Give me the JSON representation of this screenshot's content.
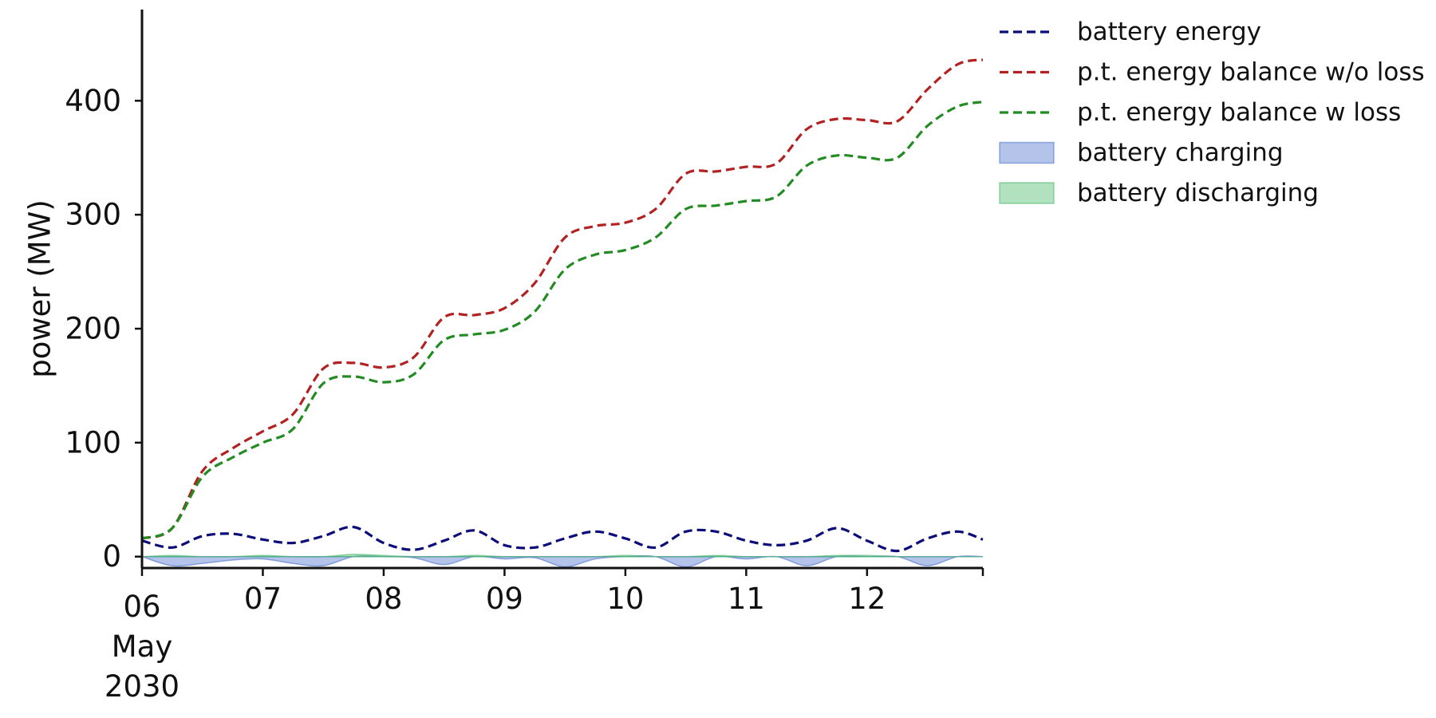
{
  "chart_data": {
    "type": "line",
    "ylabel": "power (MW)",
    "xlabel": "",
    "ylim": [
      -10,
      480
    ],
    "xlim": [
      "2030-05-06 00:00",
      "2030-05-12 23:00"
    ],
    "yticks": [
      0,
      100,
      200,
      300,
      400
    ],
    "xticks": [
      {
        "value": "2030-05-06",
        "label": [
          "06",
          "May",
          "2030"
        ]
      },
      {
        "value": "2030-05-07",
        "label": [
          "07"
        ]
      },
      {
        "value": "2030-05-08",
        "label": [
          "08"
        ]
      },
      {
        "value": "2030-05-09",
        "label": [
          "09"
        ]
      },
      {
        "value": "2030-05-10",
        "label": [
          "10"
        ]
      },
      {
        "value": "2030-05-11",
        "label": [
          "11"
        ]
      },
      {
        "value": "2030-05-12",
        "label": [
          "12"
        ]
      }
    ],
    "legend_position": "top-right outside",
    "grid": false,
    "x": [
      "2030-05-06 00:00",
      "2030-05-06 06:00",
      "2030-05-06 12:00",
      "2030-05-06 18:00",
      "2030-05-07 00:00",
      "2030-05-07 06:00",
      "2030-05-07 12:00",
      "2030-05-07 18:00",
      "2030-05-08 00:00",
      "2030-05-08 06:00",
      "2030-05-08 12:00",
      "2030-05-08 18:00",
      "2030-05-09 00:00",
      "2030-05-09 06:00",
      "2030-05-09 12:00",
      "2030-05-09 18:00",
      "2030-05-10 00:00",
      "2030-05-10 06:00",
      "2030-05-10 12:00",
      "2030-05-10 18:00",
      "2030-05-11 00:00",
      "2030-05-11 06:00",
      "2030-05-11 12:00",
      "2030-05-11 18:00",
      "2030-05-12 00:00",
      "2030-05-12 06:00",
      "2030-05-12 12:00",
      "2030-05-12 18:00",
      "2030-05-12 23:00"
    ],
    "series": [
      {
        "name": "battery energy",
        "style": "dashed",
        "color": "#0b0b7a",
        "values": [
          14,
          8,
          18,
          20,
          15,
          12,
          18,
          26,
          12,
          6,
          14,
          23,
          10,
          8,
          16,
          22,
          16,
          8,
          22,
          22,
          14,
          10,
          14,
          25,
          14,
          5,
          16,
          22,
          15
        ]
      },
      {
        "name": "p.t. energy balance w/o loss",
        "style": "dashed",
        "color": "#b22222",
        "values": [
          16,
          25,
          75,
          95,
          110,
          125,
          165,
          170,
          166,
          175,
          210,
          212,
          218,
          240,
          280,
          290,
          293,
          305,
          336,
          338,
          342,
          345,
          375,
          384,
          383,
          382,
          410,
          432,
          436
        ]
      },
      {
        "name": "p.t. energy balance w loss",
        "style": "dashed",
        "color": "#228b22",
        "values": [
          16,
          25,
          70,
          87,
          100,
          112,
          152,
          158,
          153,
          160,
          190,
          195,
          199,
          215,
          252,
          265,
          269,
          280,
          305,
          308,
          312,
          316,
          343,
          352,
          350,
          350,
          378,
          395,
          399
        ]
      },
      {
        "name": "battery charging",
        "style": "area",
        "color": "#4169c8",
        "opacity": 0.4,
        "values": [
          0,
          -8,
          -6,
          -3,
          -2,
          -6,
          -8,
          0,
          0,
          -1,
          -7,
          0,
          -2,
          -1,
          -9,
          -2,
          0,
          0,
          -9,
          0,
          -2,
          0,
          -8,
          0,
          0,
          0,
          -8,
          0,
          0
        ]
      },
      {
        "name": "battery discharging",
        "style": "area",
        "color": "#3cb460",
        "opacity": 0.4,
        "values": [
          0,
          1,
          0,
          0,
          1,
          0,
          0,
          2,
          1,
          0,
          0,
          1,
          0,
          0,
          0,
          0,
          1,
          0,
          0,
          1,
          0,
          0,
          0,
          1,
          1,
          0,
          0,
          0,
          0
        ]
      }
    ]
  }
}
